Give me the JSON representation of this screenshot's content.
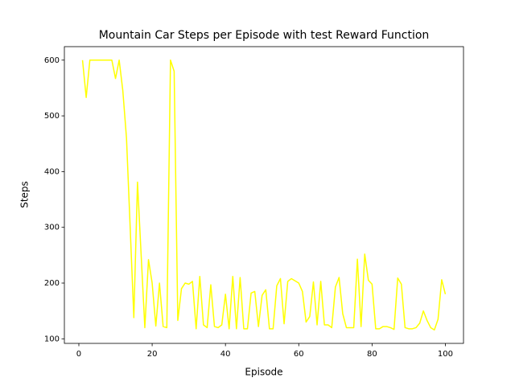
{
  "chart_data": {
    "type": "line",
    "title": "Mountain Car Steps per Episode with test Reward Function",
    "x_label": "Episode",
    "y_label": "Steps",
    "x": [
      1,
      2,
      3,
      4,
      5,
      6,
      7,
      8,
      9,
      10,
      11,
      12,
      13,
      14,
      15,
      16,
      17,
      18,
      19,
      20,
      21,
      22,
      23,
      24,
      25,
      26,
      27,
      28,
      29,
      30,
      31,
      32,
      33,
      34,
      35,
      36,
      37,
      38,
      39,
      40,
      41,
      42,
      43,
      44,
      45,
      46,
      47,
      48,
      49,
      50,
      51,
      52,
      53,
      54,
      55,
      56,
      57,
      58,
      59,
      60,
      61,
      62,
      63,
      64,
      65,
      66,
      67,
      68,
      69,
      70,
      71,
      72,
      73,
      74,
      75,
      76,
      77,
      78,
      79,
      80,
      81,
      82,
      83,
      84,
      85,
      86,
      87,
      88,
      89,
      90,
      91,
      92,
      93,
      94,
      95,
      96,
      97,
      98,
      99,
      100
    ],
    "series": [
      {
        "name": "Steps",
        "color": "#ffff00",
        "values": [
          600,
          533,
          600,
          600,
          600,
          600,
          600,
          600,
          600,
          567,
          600,
          545,
          460,
          300,
          138,
          381,
          250,
          120,
          242,
          200,
          123,
          200,
          122,
          120,
          600,
          580,
          133,
          190,
          200,
          198,
          203,
          118,
          212,
          125,
          120,
          197,
          122,
          120,
          125,
          180,
          118,
          212,
          118,
          210,
          118,
          118,
          182,
          185,
          122,
          178,
          188,
          118,
          118,
          195,
          208,
          127,
          203,
          208,
          204,
          200,
          185,
          130,
          140,
          202,
          125,
          203,
          125,
          125,
          120,
          193,
          210,
          145,
          120,
          120,
          120,
          243,
          122,
          252,
          205,
          198,
          118,
          118,
          122,
          122,
          120,
          117,
          209,
          198,
          120,
          118,
          118,
          120,
          128,
          150,
          133,
          120,
          116,
          135,
          206,
          180
        ]
      }
    ],
    "xlim": [
      -3.95,
      104.95
    ],
    "ylim": [
      91.8,
      624.2
    ],
    "xticks": [
      0,
      20,
      40,
      60,
      80,
      100
    ],
    "yticks": [
      100,
      200,
      300,
      400,
      500,
      600
    ],
    "grid": false
  }
}
